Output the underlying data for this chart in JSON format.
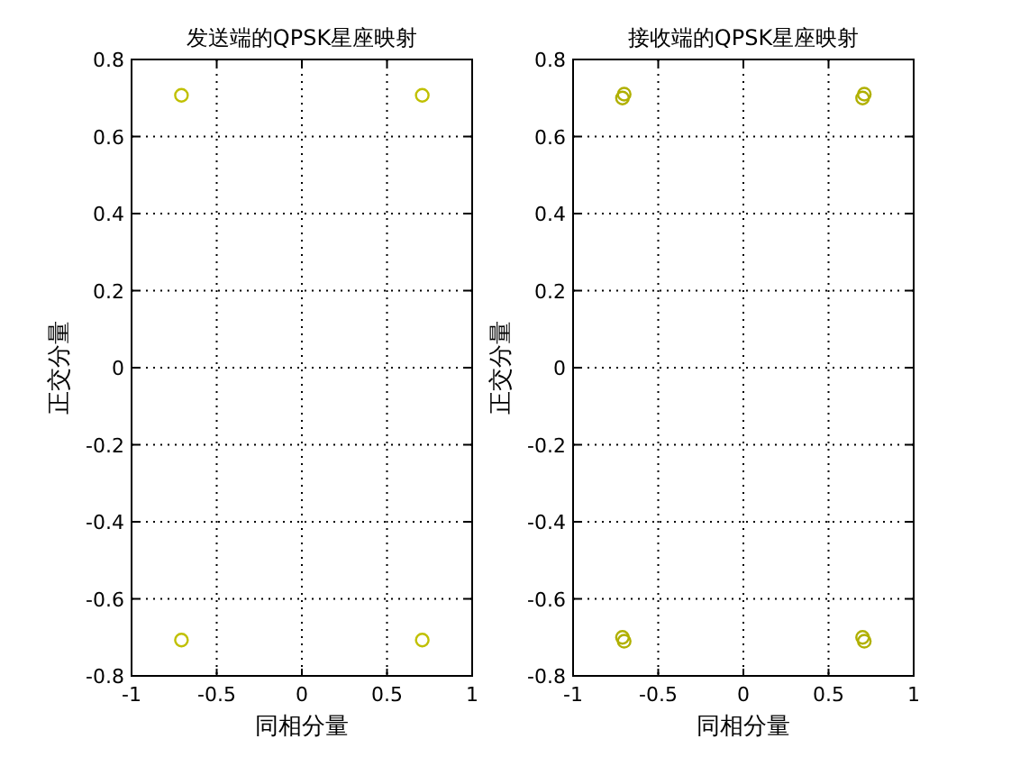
{
  "chart_data": [
    {
      "type": "scatter",
      "title": "发送端的QPSK星座映射",
      "xlabel": "同相分量",
      "ylabel": "正交分量",
      "xlim": [
        -1,
        1
      ],
      "ylim": [
        -0.8,
        0.8
      ],
      "xticks": [
        -1,
        -0.5,
        0,
        0.5,
        1
      ],
      "yticks": [
        -0.8,
        -0.6,
        -0.4,
        -0.2,
        0,
        0.2,
        0.4,
        0.6,
        0.8
      ],
      "grid": true,
      "marker": "circle",
      "series": [
        {
          "color": "#c0c000",
          "x": [
            -0.707,
            0.707,
            -0.707,
            0.707
          ],
          "values": [
            0.707,
            0.707,
            -0.707,
            -0.707
          ]
        }
      ]
    },
    {
      "type": "scatter",
      "title": "接收端的QPSK星座映射",
      "xlabel": "同相分量",
      "ylabel": "正交分量",
      "xlim": [
        -1,
        1
      ],
      "ylim": [
        -0.8,
        0.8
      ],
      "xticks": [
        -1,
        -0.5,
        0,
        0.5,
        1
      ],
      "yticks": [
        -0.8,
        -0.6,
        -0.4,
        -0.2,
        0,
        0.2,
        0.4,
        0.6,
        0.8
      ],
      "grid": true,
      "marker": "circle",
      "series": [
        {
          "color": "#b0b000",
          "x": [
            -0.71,
            -0.7,
            0.71,
            0.7,
            -0.71,
            -0.7,
            0.71,
            0.7
          ],
          "values": [
            0.7,
            0.71,
            0.71,
            0.7,
            -0.7,
            -0.71,
            -0.71,
            -0.7
          ]
        }
      ]
    }
  ]
}
